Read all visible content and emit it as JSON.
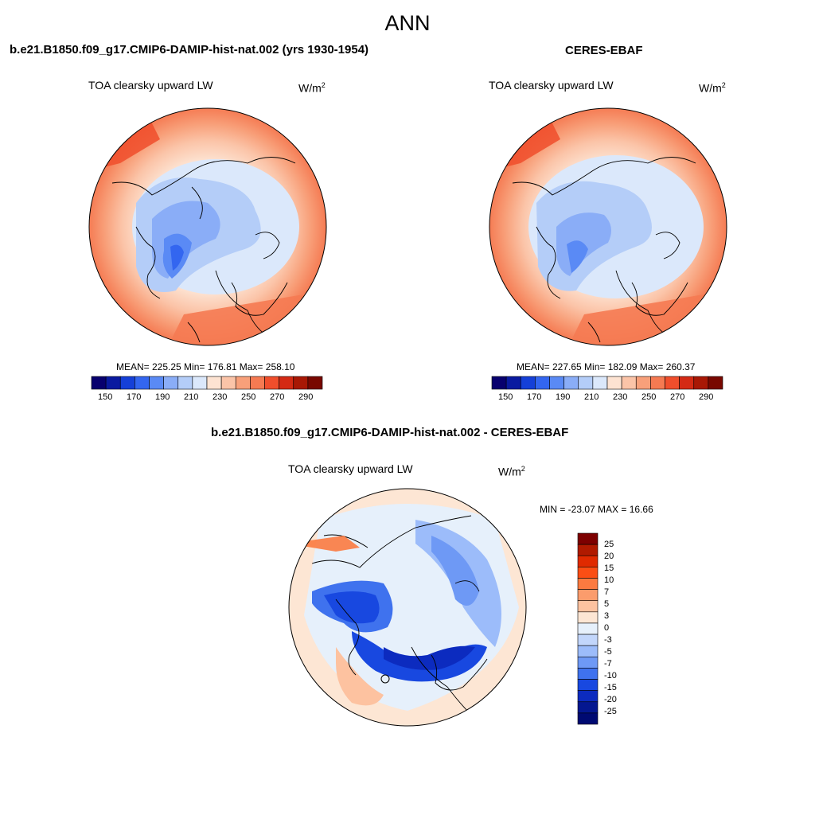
{
  "season": "ANN",
  "colors": {
    "seq_levels": [
      "#08006e",
      "#0a1aa0",
      "#1540d8",
      "#3366f0",
      "#5a8af5",
      "#8aadf7",
      "#b4cdf8",
      "#dbe8fb",
      "#fde3d2",
      "#fbc4a8",
      "#f8a07a",
      "#f57a52",
      "#f04e2c",
      "#d42a14",
      "#a81805",
      "#780800"
    ],
    "diff_levels": [
      "#7d0000",
      "#b01a00",
      "#e02a00",
      "#fb4e14",
      "#fb7a40",
      "#fb9c6c",
      "#fdc2a0",
      "#fde6d4",
      "#e6f0fb",
      "#c2d6fb",
      "#9cbcfa",
      "#6e99f5",
      "#3f72ee",
      "#1848e0",
      "#0c2bbf",
      "#041790",
      "#000a72"
    ]
  },
  "panels": [
    {
      "case_name": "b.e21.B1850.f09_g17.CMIP6-DAMIP-hist-nat.002 (yrs 1930-1954)",
      "variable": "TOA clearsky upward LW",
      "units_base": "W/m",
      "units_sup": "2",
      "stats": "MEAN= 225.25  Min= 176.81  Max= 258.10",
      "colorbar_ticks": [
        "150",
        "170",
        "190",
        "210",
        "230",
        "250",
        "270",
        "290"
      ]
    },
    {
      "case_name": "CERES-EBAF",
      "variable": "TOA clearsky upward LW",
      "units_base": "W/m",
      "units_sup": "2",
      "stats": "MEAN= 227.65  Min= 182.09  Max= 260.37",
      "colorbar_ticks": [
        "150",
        "170",
        "190",
        "210",
        "230",
        "250",
        "270",
        "290"
      ]
    }
  ],
  "diff": {
    "case_name": "b.e21.B1850.f09_g17.CMIP6-DAMIP-hist-nat.002 - CERES-EBAF",
    "variable": "TOA clearsky upward LW",
    "units_base": "W/m",
    "units_sup": "2",
    "stats": "MIN = -23.07 MAX =  16.66",
    "colorbar_ticks": [
      "25",
      "20",
      "15",
      "10",
      "7",
      "5",
      "3",
      "0",
      "-3",
      "-5",
      "-7",
      "-10",
      "-15",
      "-20",
      "-25"
    ]
  }
}
